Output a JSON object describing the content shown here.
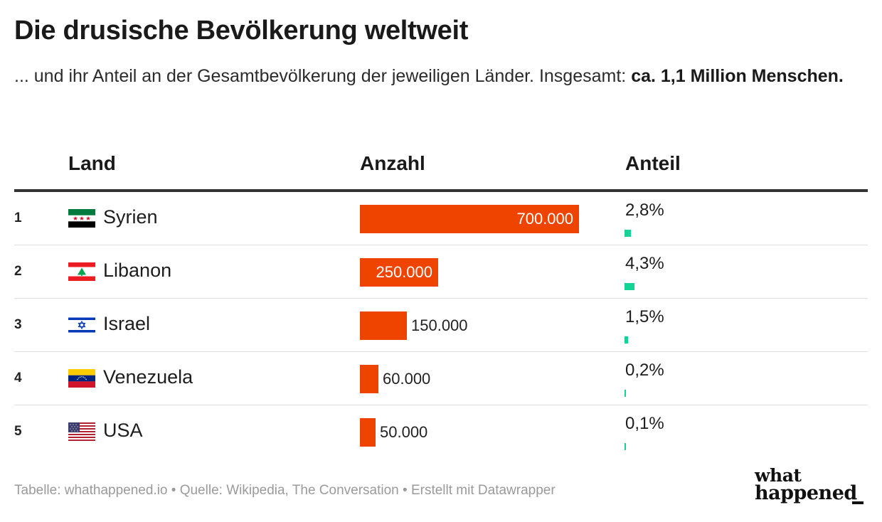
{
  "header": {
    "title": "Die drusische Bevölkerung weltweit",
    "subtitle_text": "... und ihr Anteil an der Gesamtbevölkerung der jeweiligen Länder. Insgesamt: ",
    "subtitle_bold": "ca. 1,1 Million Menschen."
  },
  "chart_data": {
    "type": "table",
    "columns": [
      "Land",
      "Anzahl",
      "Anteil"
    ],
    "count_max": 700000,
    "share_max_percent": 4.3,
    "rows": [
      {
        "rank": "1",
        "country": "Syrien",
        "flag": "syria-flag",
        "count": 700000,
        "count_label": "700.000",
        "share": 2.8,
        "share_label": "2,8%"
      },
      {
        "rank": "2",
        "country": "Libanon",
        "flag": "lebanon-flag",
        "count": 250000,
        "count_label": "250.000",
        "share": 4.3,
        "share_label": "4,3%"
      },
      {
        "rank": "3",
        "country": "Israel",
        "flag": "israel-flag",
        "count": 150000,
        "count_label": "150.000",
        "share": 1.5,
        "share_label": "1,5%"
      },
      {
        "rank": "4",
        "country": "Venezuela",
        "flag": "venezuela-flag",
        "count": 60000,
        "count_label": "60.000",
        "share": 0.2,
        "share_label": "0,2%"
      },
      {
        "rank": "5",
        "country": "USA",
        "flag": "usa-flag",
        "count": 50000,
        "count_label": "50.000",
        "share": 0.1,
        "share_label": "0,1%"
      }
    ],
    "colors": {
      "count_bar": "#ee4400",
      "share_bar": "#14d394"
    }
  },
  "footer": {
    "text": "Tabelle: whathappened.io  • Quelle: Wikipedia, The Conversation • Erstellt mit Datawrapper"
  },
  "logo": {
    "line1": "what",
    "line2": "happened"
  }
}
